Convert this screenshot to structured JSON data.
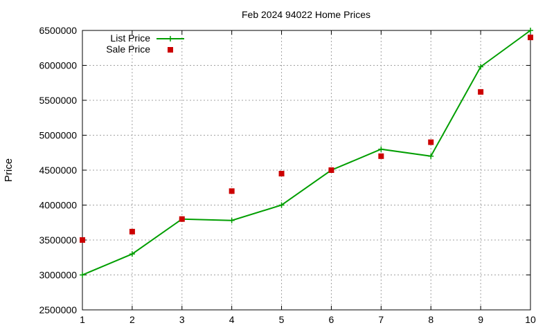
{
  "chart_data": {
    "type": "line",
    "title": "Feb 2024 94022 Home Prices",
    "xlabel": "",
    "ylabel": "Price",
    "xlim": [
      1,
      10
    ],
    "ylim": [
      2500000,
      6500000
    ],
    "x_ticks": [
      "1",
      "2",
      "3",
      "4",
      "5",
      "6",
      "7",
      "8",
      "9",
      "10"
    ],
    "y_ticks": [
      "2500000",
      "3000000",
      "3500000",
      "4000000",
      "4500000",
      "5000000",
      "5500000",
      "6000000",
      "6500000"
    ],
    "grid": true,
    "legend_position": "top-left",
    "series": [
      {
        "name": "List Price",
        "style": "line-with-plus-markers",
        "color": "#009e00",
        "x": [
          1,
          2,
          3,
          4,
          5,
          6,
          7,
          8,
          9,
          10
        ],
        "y": [
          3000000,
          3300000,
          3800000,
          3780000,
          4000000,
          4500000,
          4800000,
          4700000,
          5980000,
          6500000
        ]
      },
      {
        "name": "Sale Price",
        "style": "square-markers",
        "color": "#cc0000",
        "x": [
          1,
          2,
          3,
          4,
          5,
          6,
          7,
          8,
          9,
          10
        ],
        "y": [
          3500000,
          3620000,
          3800000,
          4200000,
          4450000,
          4500000,
          4700000,
          4900000,
          5620000,
          6400000
        ]
      }
    ]
  }
}
